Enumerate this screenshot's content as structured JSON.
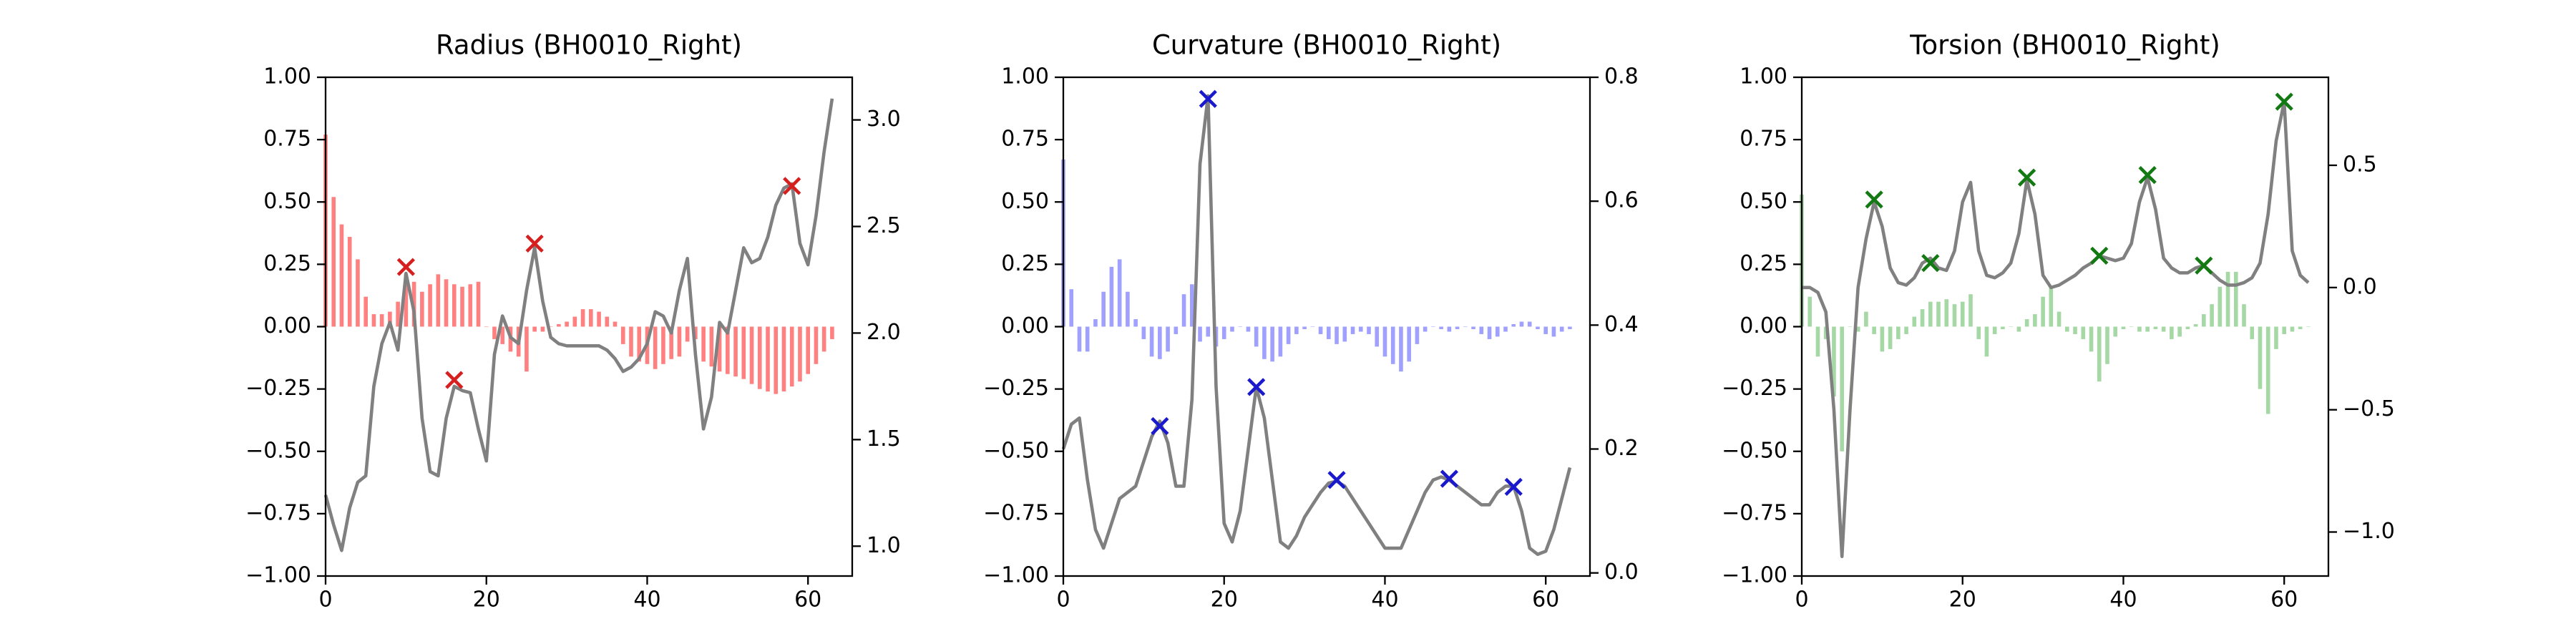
{
  "chart_data": [
    {
      "type": "bar",
      "title": "Radius (BH0010_Right)",
      "x": [
        0,
        1,
        2,
        3,
        4,
        5,
        6,
        7,
        8,
        9,
        10,
        11,
        12,
        13,
        14,
        15,
        16,
        17,
        18,
        19,
        20,
        21,
        22,
        23,
        24,
        25,
        26,
        27,
        28,
        29,
        30,
        31,
        32,
        33,
        34,
        35,
        36,
        37,
        38,
        39,
        40,
        41,
        42,
        43,
        44,
        45,
        46,
        47,
        48,
        49,
        50,
        51,
        52,
        53,
        54,
        55,
        56,
        57,
        58,
        59,
        60,
        61,
        62,
        63
      ],
      "xlim": [
        0,
        65.5
      ],
      "xticks": [
        0,
        20,
        40,
        60
      ],
      "ylim": [
        -1,
        1
      ],
      "yticks": [
        {
          "value": -1,
          "label": "−1.00"
        },
        {
          "value": -0.75,
          "label": "−0.75"
        },
        {
          "value": -0.5,
          "label": "−0.50"
        },
        {
          "value": -0.25,
          "label": "−0.25"
        },
        {
          "value": 0,
          "label": "0.00"
        },
        {
          "value": 0.25,
          "label": "0.25"
        },
        {
          "value": 0.5,
          "label": "0.50"
        },
        {
          "value": 0.75,
          "label": "0.75"
        },
        {
          "value": 1,
          "label": "1.00"
        }
      ],
      "y2lim": [
        0.86,
        3.2
      ],
      "y2ticks": [
        {
          "value": 1,
          "label": "1.0"
        },
        1.5,
        {
          "value": 2,
          "label": "2.0"
        },
        2.5,
        {
          "value": 3,
          "label": "3.0"
        }
      ],
      "series": [
        {
          "type": "bar",
          "color": "#ff8080",
          "values": [
            0.77,
            0.52,
            0.41,
            0.36,
            0.27,
            0.12,
            0.05,
            0.05,
            0.06,
            0.1,
            0.21,
            0.18,
            0.14,
            0.17,
            0.21,
            0.19,
            0.17,
            0.16,
            0.17,
            0.18,
            0.0,
            -0.05,
            -0.07,
            -0.1,
            -0.12,
            -0.18,
            -0.02,
            -0.02,
            0.0,
            0.01,
            0.02,
            0.04,
            0.07,
            0.07,
            0.06,
            0.04,
            0.02,
            -0.07,
            -0.12,
            -0.14,
            -0.15,
            -0.17,
            -0.15,
            -0.13,
            -0.12,
            -0.06,
            -0.05,
            -0.14,
            -0.16,
            -0.18,
            -0.19,
            -0.2,
            -0.21,
            -0.23,
            -0.25,
            -0.26,
            -0.27,
            -0.26,
            -0.24,
            -0.22,
            -0.19,
            -0.15,
            -0.1,
            -0.05
          ]
        },
        {
          "type": "line",
          "axis": "y2",
          "color": "#808080",
          "values": [
            1.24,
            1.1,
            0.98,
            1.18,
            1.3,
            1.33,
            1.75,
            1.95,
            2.05,
            1.92,
            2.28,
            2.1,
            1.6,
            1.35,
            1.33,
            1.6,
            1.75,
            1.73,
            1.72,
            1.55,
            1.4,
            1.9,
            2.08,
            1.98,
            1.95,
            2.2,
            2.4,
            2.15,
            1.98,
            1.95,
            1.94,
            1.94,
            1.94,
            1.94,
            1.94,
            1.92,
            1.88,
            1.82,
            1.84,
            1.88,
            1.95,
            2.1,
            2.08,
            2.0,
            2.2,
            2.35,
            1.9,
            1.55,
            1.7,
            2.05,
            2.0,
            2.2,
            2.4,
            2.33,
            2.35,
            2.45,
            2.6,
            2.68,
            2.7,
            2.42,
            2.32,
            2.55,
            2.85,
            3.1
          ]
        },
        {
          "type": "scatter",
          "axis": "y2",
          "color": "#d62020",
          "x": [
            10,
            16,
            26,
            58
          ],
          "values": [
            2.31,
            1.78,
            2.42,
            2.69
          ]
        }
      ]
    },
    {
      "type": "bar",
      "title": "Curvature (BH0010_Right)",
      "x": [
        0,
        1,
        2,
        3,
        4,
        5,
        6,
        7,
        8,
        9,
        10,
        11,
        12,
        13,
        14,
        15,
        16,
        17,
        18,
        19,
        20,
        21,
        22,
        23,
        24,
        25,
        26,
        27,
        28,
        29,
        30,
        31,
        32,
        33,
        34,
        35,
        36,
        37,
        38,
        39,
        40,
        41,
        42,
        43,
        44,
        45,
        46,
        47,
        48,
        49,
        50,
        51,
        52,
        53,
        54,
        55,
        56,
        57,
        58,
        59,
        60,
        61,
        62,
        63
      ],
      "xlim": [
        0,
        65.5
      ],
      "xticks": [
        0,
        20,
        40,
        60
      ],
      "ylim": [
        -1,
        1
      ],
      "yticks": [
        {
          "value": -1,
          "label": "−1.00"
        },
        {
          "value": -0.75,
          "label": "−0.75"
        },
        {
          "value": -0.5,
          "label": "−0.50"
        },
        {
          "value": -0.25,
          "label": "−0.25"
        },
        {
          "value": 0,
          "label": "0.00"
        },
        {
          "value": 0.25,
          "label": "0.25"
        },
        {
          "value": 0.5,
          "label": "0.50"
        },
        {
          "value": 0.75,
          "label": "0.75"
        },
        {
          "value": 1,
          "label": "1.00"
        }
      ],
      "y2lim": [
        -0.005,
        0.8
      ],
      "y2ticks": [
        {
          "value": 0,
          "label": "0.0"
        },
        0.2,
        0.4,
        0.6,
        0.8
      ],
      "series": [
        {
          "type": "bar",
          "color": "#a0a0ff",
          "values": [
            0.67,
            0.15,
            -0.1,
            -0.1,
            0.03,
            0.14,
            0.24,
            0.27,
            0.14,
            0.03,
            -0.05,
            -0.12,
            -0.13,
            -0.1,
            -0.03,
            0.13,
            0.17,
            -0.06,
            -0.04,
            -0.08,
            -0.05,
            -0.02,
            0.0,
            -0.02,
            -0.08,
            -0.13,
            -0.14,
            -0.12,
            -0.07,
            -0.03,
            -0.01,
            0.0,
            -0.03,
            -0.05,
            -0.07,
            -0.06,
            -0.03,
            -0.02,
            -0.03,
            -0.08,
            -0.12,
            -0.15,
            -0.18,
            -0.14,
            -0.07,
            -0.02,
            0.0,
            -0.01,
            -0.02,
            -0.01,
            0.0,
            -0.01,
            -0.03,
            -0.05,
            -0.04,
            -0.02,
            0.01,
            0.02,
            0.02,
            -0.01,
            -0.03,
            -0.04,
            -0.02,
            -0.01
          ]
        },
        {
          "type": "line",
          "axis": "y2",
          "color": "#808080",
          "values": [
            0.2,
            0.24,
            0.25,
            0.15,
            0.07,
            0.04,
            0.08,
            0.12,
            0.13,
            0.14,
            0.18,
            0.22,
            0.245,
            0.21,
            0.14,
            0.14,
            0.28,
            0.66,
            0.77,
            0.3,
            0.08,
            0.05,
            0.1,
            0.2,
            0.3,
            0.25,
            0.15,
            0.05,
            0.04,
            0.06,
            0.09,
            0.11,
            0.13,
            0.145,
            0.148,
            0.14,
            0.12,
            0.1,
            0.08,
            0.06,
            0.04,
            0.04,
            0.04,
            0.07,
            0.1,
            0.13,
            0.15,
            0.155,
            0.15,
            0.14,
            0.13,
            0.12,
            0.11,
            0.11,
            0.13,
            0.14,
            0.14,
            0.1,
            0.04,
            0.03,
            0.035,
            0.07,
            0.12,
            0.17
          ]
        },
        {
          "type": "scatter",
          "axis": "y2",
          "color": "#1a1acc",
          "x": [
            12,
            18,
            24,
            34,
            48,
            56
          ],
          "values": [
            0.237,
            0.765,
            0.3,
            0.15,
            0.152,
            0.139
          ]
        }
      ]
    },
    {
      "type": "bar",
      "title": "Torsion (BH0010_Right)",
      "x": [
        0,
        1,
        2,
        3,
        4,
        5,
        6,
        7,
        8,
        9,
        10,
        11,
        12,
        13,
        14,
        15,
        16,
        17,
        18,
        19,
        20,
        21,
        22,
        23,
        24,
        25,
        26,
        27,
        28,
        29,
        30,
        31,
        32,
        33,
        34,
        35,
        36,
        37,
        38,
        39,
        40,
        41,
        42,
        43,
        44,
        45,
        46,
        47,
        48,
        49,
        50,
        51,
        52,
        53,
        54,
        55,
        56,
        57,
        58,
        59,
        60,
        61,
        62,
        63
      ],
      "xlim": [
        0,
        65.5
      ],
      "xticks": [
        0,
        20,
        40,
        60
      ],
      "ylim": [
        -1,
        1
      ],
      "yticks": [
        {
          "value": -1,
          "label": "−1.00"
        },
        {
          "value": -0.75,
          "label": "−0.75"
        },
        {
          "value": -0.5,
          "label": "−0.50"
        },
        {
          "value": -0.25,
          "label": "−0.25"
        },
        {
          "value": 0,
          "label": "0.00"
        },
        {
          "value": 0.25,
          "label": "0.25"
        },
        {
          "value": 0.5,
          "label": "0.50"
        },
        {
          "value": 0.75,
          "label": "0.75"
        },
        {
          "value": 1,
          "label": "1.00"
        }
      ],
      "y2lim": [
        -1.18,
        0.86
      ],
      "y2ticks": [
        {
          "value": -1,
          "label": "−1.0"
        },
        {
          "value": -0.5,
          "label": "−0.5"
        },
        {
          "value": 0,
          "label": "0.0"
        },
        0.5
      ],
      "series": [
        {
          "type": "bar",
          "color": "#a6d8a6",
          "values": [
            0.53,
            0.12,
            -0.12,
            -0.05,
            -0.28,
            -0.5,
            0.0,
            -0.02,
            0.06,
            -0.03,
            -0.1,
            -0.09,
            -0.05,
            -0.03,
            0.04,
            0.07,
            0.1,
            0.1,
            0.11,
            0.09,
            0.1,
            0.13,
            -0.05,
            -0.12,
            -0.03,
            -0.01,
            0.0,
            -0.02,
            0.03,
            0.05,
            0.12,
            0.16,
            0.06,
            -0.02,
            -0.03,
            -0.05,
            -0.1,
            -0.22,
            -0.15,
            -0.04,
            -0.01,
            0.0,
            -0.02,
            -0.02,
            -0.01,
            -0.02,
            -0.05,
            -0.04,
            -0.01,
            0.01,
            0.05,
            0.09,
            0.16,
            0.22,
            0.22,
            0.09,
            -0.05,
            -0.25,
            -0.35,
            -0.09,
            -0.03,
            -0.02,
            -0.01,
            0.0
          ]
        },
        {
          "type": "line",
          "axis": "y2",
          "color": "#808080",
          "values": [
            0.0,
            0.0,
            -0.02,
            -0.1,
            -0.5,
            -1.1,
            -0.5,
            0.0,
            0.2,
            0.35,
            0.25,
            0.08,
            0.02,
            0.01,
            0.04,
            0.1,
            0.12,
            0.08,
            0.07,
            0.15,
            0.35,
            0.43,
            0.15,
            0.05,
            0.04,
            0.06,
            0.1,
            0.22,
            0.44,
            0.3,
            0.05,
            0.0,
            0.01,
            0.03,
            0.05,
            0.08,
            0.1,
            0.13,
            0.12,
            0.11,
            0.12,
            0.18,
            0.35,
            0.45,
            0.32,
            0.12,
            0.08,
            0.06,
            0.06,
            0.08,
            0.09,
            0.06,
            0.03,
            0.01,
            0.01,
            0.02,
            0.04,
            0.1,
            0.3,
            0.6,
            0.76,
            0.15,
            0.05,
            0.02
          ]
        },
        {
          "type": "scatter",
          "axis": "y2",
          "color": "#137a13",
          "x": [
            9,
            16,
            28,
            37,
            43,
            50,
            60
          ],
          "values": [
            0.36,
            0.1,
            0.45,
            0.13,
            0.46,
            0.09,
            0.76
          ]
        }
      ]
    }
  ]
}
